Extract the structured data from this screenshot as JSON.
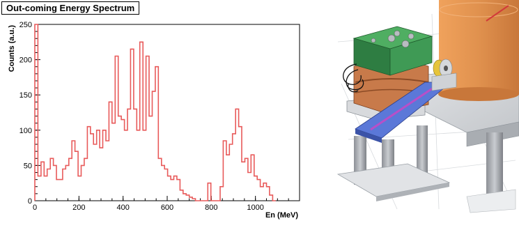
{
  "chart_data": {
    "type": "histogram",
    "title": "Out-coming Energy Spectrum",
    "xlabel": "En (MeV)",
    "ylabel": "Counts (a.u.)",
    "xlim": [
      0,
      1200
    ],
    "ylim": [
      0,
      250
    ],
    "xticks": [
      0,
      200,
      400,
      600,
      800,
      1000
    ],
    "yticks": [
      0,
      50,
      100,
      150,
      200,
      250
    ],
    "grid": false,
    "line_color": "#e85a5a",
    "bin_width": 14,
    "x": [
      0,
      14,
      28,
      42,
      56,
      70,
      84,
      98,
      112,
      126,
      140,
      154,
      168,
      182,
      196,
      210,
      224,
      238,
      252,
      266,
      280,
      294,
      308,
      322,
      336,
      350,
      364,
      378,
      392,
      406,
      420,
      434,
      448,
      462,
      476,
      490,
      504,
      518,
      532,
      546,
      560,
      574,
      588,
      602,
      616,
      630,
      644,
      658,
      672,
      686,
      700,
      714,
      728,
      742,
      756,
      770,
      784,
      798,
      812,
      826,
      840,
      854,
      868,
      882,
      896,
      910,
      924,
      938,
      952,
      966,
      980,
      994,
      1008,
      1022,
      1036,
      1050,
      1064,
      1078
    ],
    "values": [
      250,
      35,
      55,
      35,
      45,
      60,
      50,
      30,
      30,
      45,
      50,
      60,
      85,
      70,
      35,
      50,
      60,
      105,
      95,
      80,
      100,
      75,
      100,
      85,
      140,
      110,
      205,
      120,
      115,
      100,
      130,
      215,
      130,
      100,
      225,
      100,
      205,
      120,
      155,
      190,
      60,
      50,
      45,
      35,
      30,
      35,
      30,
      15,
      10,
      8,
      5,
      3,
      0,
      0,
      0,
      0,
      25,
      0,
      0,
      0,
      20,
      85,
      65,
      80,
      95,
      130,
      105,
      55,
      60,
      40,
      65,
      35,
      30,
      20,
      25,
      20,
      8,
      0
    ]
  },
  "illustration": {
    "description": "CAD rendering of detector assembly",
    "colors": {
      "green_block": "#3f9a55",
      "copper": "#c87a4a",
      "blue_plate": "#5b78d8",
      "gray_metal": "#c9ccd0",
      "orange_cylinder": "#e0914e"
    }
  }
}
